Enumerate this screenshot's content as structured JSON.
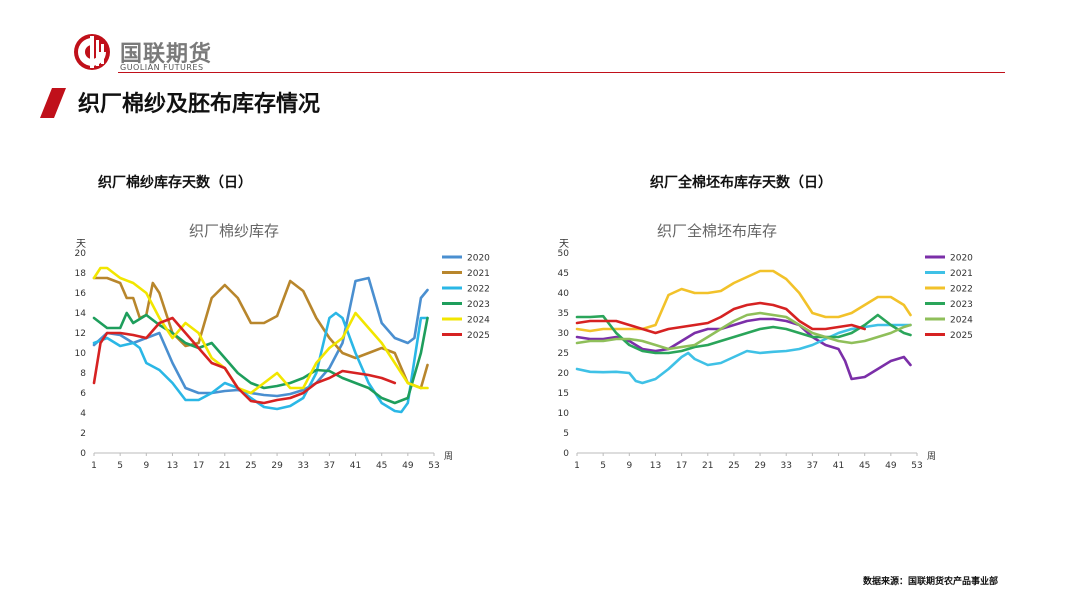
{
  "header": {
    "company_cn": "国联期货",
    "company_en": "GUOLIAN FUTURES",
    "title": "织厂棉纱及胚布库存情况"
  },
  "left": {
    "heading": "织厂棉纱库存天数（日）"
  },
  "right": {
    "heading": "织厂全棉坯布库存天数（日）"
  },
  "footer": {
    "source": "数据来源：国联期货农产品事业部"
  },
  "colors": {
    "brand_red": "#c0101a",
    "2020": "#4a8fd0",
    "2021": "#b8862c",
    "2022": "#2ab7e6",
    "2023": "#1e9e5c",
    "2024": "#f2e600",
    "2025": "#d62222",
    "2020b": "#7b2fa8",
    "2021b": "#3fc1e6",
    "2022b": "#f2c22a",
    "2023b": "#2aa55a",
    "2024b": "#8fbf5a",
    "2025b": "#d62222"
  },
  "chart_data": [
    {
      "type": "line",
      "title": "织厂棉纱库存",
      "ylabel": "天",
      "xlabel": "周",
      "ylim": [
        0,
        20
      ],
      "yticks": [
        0,
        2,
        4,
        6,
        8,
        10,
        12,
        14,
        16,
        18,
        20
      ],
      "xlim": [
        1,
        53
      ],
      "xticks": [
        1,
        5,
        9,
        13,
        17,
        21,
        25,
        29,
        33,
        37,
        41,
        45,
        49,
        53
      ],
      "legend_position": "right",
      "series": [
        {
          "name": "2020",
          "color": "#4a8fd0",
          "x": [
            1,
            3,
            5,
            7,
            9,
            11,
            13,
            15,
            17,
            19,
            21,
            23,
            25,
            27,
            29,
            31,
            33,
            35,
            37,
            39,
            41,
            43,
            45,
            47,
            49,
            50,
            51,
            52
          ],
          "values": [
            10.8,
            12,
            11.8,
            11,
            11.5,
            12,
            9,
            6.5,
            6,
            6,
            6.2,
            6.3,
            6,
            5.8,
            5.7,
            5.9,
            6.3,
            7,
            8.5,
            11,
            17.2,
            17.5,
            13,
            11.5,
            11,
            11.5,
            15.5,
            16.3
          ]
        },
        {
          "name": "2021",
          "color": "#b8862c",
          "x": [
            1,
            3,
            5,
            6,
            7,
            8,
            9,
            10,
            11,
            13,
            15,
            17,
            19,
            21,
            23,
            25,
            27,
            29,
            31,
            33,
            35,
            37,
            39,
            41,
            43,
            45,
            47,
            49,
            51,
            52
          ],
          "values": [
            17.5,
            17.5,
            17,
            15.5,
            15.5,
            13.5,
            13.8,
            17,
            16,
            12,
            10.7,
            11,
            15.5,
            16.8,
            15.5,
            13,
            13,
            13.7,
            17.2,
            16.2,
            13.5,
            11.5,
            10,
            9.5,
            10,
            10.5,
            10,
            7,
            6.5,
            8.8
          ]
        },
        {
          "name": "2022",
          "color": "#2ab7e6",
          "x": [
            1,
            3,
            5,
            7,
            8,
            9,
            11,
            13,
            15,
            17,
            19,
            21,
            23,
            25,
            27,
            29,
            31,
            33,
            35,
            37,
            38,
            39,
            41,
            43,
            45,
            47,
            48,
            49,
            51,
            52
          ],
          "values": [
            11,
            11.5,
            10.7,
            11,
            10.5,
            9,
            8.3,
            7,
            5.3,
            5.3,
            6,
            7,
            6.5,
            5.5,
            4.6,
            4.4,
            4.7,
            5.5,
            8,
            13.5,
            14,
            13.5,
            10,
            7,
            5,
            4.2,
            4.1,
            5,
            13.5,
            13.5
          ]
        },
        {
          "name": "2023",
          "color": "#1e9e5c",
          "x": [
            1,
            3,
            5,
            6,
            7,
            9,
            11,
            13,
            15,
            17,
            19,
            21,
            23,
            25,
            27,
            29,
            31,
            33,
            35,
            37,
            39,
            41,
            43,
            45,
            47,
            49,
            51,
            52
          ],
          "values": [
            13.5,
            12.5,
            12.5,
            14,
            13,
            13.8,
            12.8,
            12,
            11,
            10.5,
            11,
            9.5,
            8,
            7,
            6.5,
            6.7,
            7,
            7.5,
            8.3,
            8.2,
            7.5,
            7,
            6.5,
            5.5,
            5,
            5.5,
            10,
            13.5
          ]
        },
        {
          "name": "2024",
          "color": "#f2e600",
          "x": [
            1,
            2,
            3,
            5,
            7,
            9,
            11,
            13,
            15,
            17,
            19,
            21,
            23,
            25,
            27,
            29,
            31,
            33,
            35,
            37,
            39,
            41,
            43,
            45,
            47,
            49,
            51,
            52
          ],
          "values": [
            17.5,
            18.5,
            18.5,
            17.5,
            17,
            16,
            13.5,
            11.5,
            13,
            12,
            9.5,
            8.5,
            6.5,
            6,
            7,
            8,
            6.5,
            6.5,
            9,
            10.5,
            11.5,
            14,
            12.5,
            11,
            9,
            7,
            6.5,
            6.5
          ]
        },
        {
          "name": "2025",
          "color": "#d62222",
          "x": [
            1,
            2,
            3,
            5,
            7,
            9,
            11,
            13,
            15,
            17,
            19,
            21,
            23,
            25,
            27,
            29,
            31,
            33,
            35,
            37,
            39,
            41,
            43,
            45,
            47
          ],
          "values": [
            7,
            11,
            12,
            12,
            11.8,
            11.5,
            13,
            13.5,
            12,
            10.5,
            9,
            8.5,
            6.5,
            5.2,
            5,
            5.3,
            5.5,
            6,
            7,
            7.5,
            8.2,
            8,
            7.8,
            7.5,
            7
          ]
        }
      ]
    },
    {
      "type": "line",
      "title": "织厂全棉坯布库存",
      "ylabel": "天",
      "xlabel": "周",
      "ylim": [
        0,
        50
      ],
      "yticks": [
        0,
        5,
        10,
        15,
        20,
        25,
        30,
        35,
        40,
        45,
        50
      ],
      "xlim": [
        1,
        53
      ],
      "xticks": [
        1,
        5,
        9,
        13,
        17,
        21,
        25,
        29,
        33,
        37,
        41,
        45,
        49,
        53
      ],
      "legend_position": "right",
      "series": [
        {
          "name": "2020",
          "color": "#7b2fa8",
          "x": [
            1,
            3,
            5,
            7,
            9,
            11,
            13,
            15,
            17,
            19,
            21,
            23,
            25,
            27,
            29,
            31,
            33,
            35,
            37,
            39,
            41,
            42,
            43,
            45,
            47,
            49,
            51,
            52
          ],
          "values": [
            29,
            28.5,
            28.5,
            29,
            28,
            26,
            25.5,
            26,
            28,
            30,
            31,
            31,
            32,
            33,
            33.5,
            33.5,
            33,
            32,
            29,
            27,
            26,
            23,
            18.5,
            19,
            21,
            23,
            24,
            22
          ]
        },
        {
          "name": "2021",
          "color": "#3fc1e6",
          "x": [
            1,
            3,
            5,
            7,
            9,
            10,
            11,
            13,
            15,
            17,
            18,
            19,
            21,
            23,
            25,
            27,
            29,
            31,
            33,
            35,
            37,
            39,
            41,
            43,
            45,
            47,
            49,
            51,
            52
          ],
          "values": [
            21,
            20.3,
            20.2,
            20.3,
            20,
            18,
            17.5,
            18.5,
            21,
            24,
            25,
            23.5,
            22,
            22.5,
            24,
            25.5,
            25,
            25.3,
            25.5,
            26,
            27,
            28.5,
            30,
            31,
            31.5,
            32,
            32,
            32,
            32
          ]
        },
        {
          "name": "2022",
          "color": "#f2c22a",
          "x": [
            1,
            3,
            5,
            7,
            9,
            11,
            13,
            15,
            17,
            19,
            21,
            23,
            25,
            27,
            29,
            31,
            33,
            35,
            37,
            39,
            41,
            43,
            45,
            47,
            49,
            51,
            52
          ],
          "values": [
            31,
            30.5,
            31,
            31,
            31,
            31,
            32,
            39.5,
            41,
            40,
            40,
            40.5,
            42.5,
            44,
            45.5,
            45.5,
            43.5,
            40,
            35,
            34,
            34,
            35,
            37,
            39,
            39,
            37,
            34.5
          ]
        },
        {
          "name": "2023",
          "color": "#2aa55a",
          "x": [
            1,
            3,
            5,
            7,
            9,
            11,
            13,
            15,
            17,
            19,
            21,
            23,
            25,
            27,
            29,
            31,
            33,
            35,
            37,
            39,
            41,
            43,
            45,
            47,
            49,
            51,
            52
          ],
          "values": [
            34,
            34,
            34.2,
            30,
            27,
            25.5,
            25,
            25,
            25.5,
            26.5,
            27,
            28,
            29,
            30,
            31,
            31.5,
            31,
            30,
            29,
            29,
            29,
            30,
            32,
            34.5,
            32,
            30,
            29.5
          ]
        },
        {
          "name": "2024",
          "color": "#8fbf5a",
          "x": [
            1,
            3,
            5,
            7,
            9,
            11,
            13,
            15,
            17,
            19,
            21,
            23,
            25,
            27,
            29,
            31,
            33,
            35,
            37,
            39,
            41,
            43,
            45,
            47,
            49,
            51,
            52
          ],
          "values": [
            27.5,
            28,
            28,
            28.5,
            28.5,
            28,
            27,
            26,
            26.5,
            27,
            29,
            31,
            33,
            34.5,
            35,
            34.5,
            34,
            32,
            30,
            29,
            28,
            27.5,
            28,
            29,
            30,
            31.5,
            32
          ]
        },
        {
          "name": "2025",
          "color": "#d62222",
          "x": [
            1,
            3,
            5,
            7,
            9,
            11,
            13,
            15,
            17,
            19,
            21,
            23,
            25,
            27,
            29,
            31,
            33,
            35,
            37,
            39,
            41,
            43,
            45
          ],
          "values": [
            32.5,
            33,
            33,
            33,
            32,
            31,
            30,
            31,
            31.5,
            32,
            32.5,
            34,
            36,
            37,
            37.5,
            37,
            36,
            33,
            31,
            31,
            31.5,
            32,
            31
          ]
        }
      ]
    }
  ]
}
